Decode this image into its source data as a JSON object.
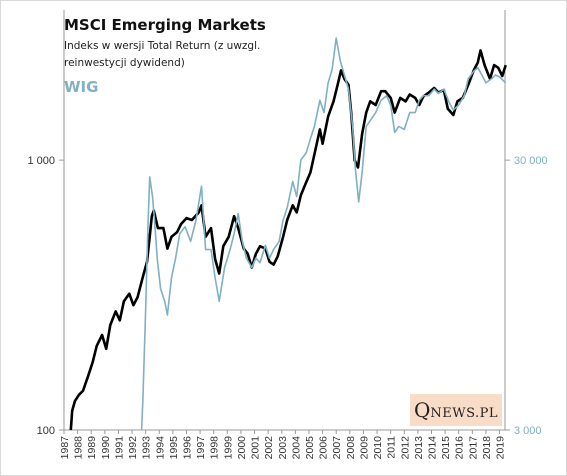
{
  "chart_data": {
    "type": "line",
    "title": "MSCI Emerging Markets",
    "subtitle": "Indeks w wersji Total Return (z uwzgl. reinwestycji dywidend)",
    "y_scale": "log",
    "x_ticks": [
      "1987",
      "1988",
      "1989",
      "1990",
      "1991",
      "1992",
      "1993",
      "1994",
      "1995",
      "1996",
      "1997",
      "1998",
      "1999",
      "2000",
      "2001",
      "2002",
      "2003",
      "2004",
      "2005",
      "2006",
      "2007",
      "2008",
      "2009",
      "2010",
      "2011",
      "2012",
      "2013",
      "2014",
      "2015",
      "2016",
      "2017",
      "2018",
      "2019"
    ],
    "ylim_left": [
      100,
      3600
    ],
    "ylim_right": [
      3000,
      108000
    ],
    "y_ticks_left": [
      "100",
      "1 000"
    ],
    "y_ticks_right": [
      "3 000",
      "30 000"
    ],
    "colors": {
      "msci": "#000000",
      "wig": "#7fb0c4"
    },
    "series": [
      {
        "name": "MSCI Emerging Markets",
        "axis": "left",
        "points": [
          [
            1988.0,
            100
          ],
          [
            1988.1,
            118
          ],
          [
            1988.3,
            128
          ],
          [
            1988.6,
            135
          ],
          [
            1988.9,
            140
          ],
          [
            1989.3,
            160
          ],
          [
            1989.6,
            178
          ],
          [
            1989.9,
            205
          ],
          [
            1990.3,
            225
          ],
          [
            1990.6,
            200
          ],
          [
            1990.9,
            245
          ],
          [
            1991.3,
            275
          ],
          [
            1991.6,
            255
          ],
          [
            1991.9,
            300
          ],
          [
            1992.3,
            320
          ],
          [
            1992.6,
            290
          ],
          [
            1992.9,
            310
          ],
          [
            1993.3,
            370
          ],
          [
            1993.6,
            420
          ],
          [
            1993.8,
            520
          ],
          [
            1993.95,
            620
          ],
          [
            1994.1,
            650
          ],
          [
            1994.4,
            560
          ],
          [
            1994.8,
            560
          ],
          [
            1995.1,
            470
          ],
          [
            1995.4,
            520
          ],
          [
            1995.8,
            540
          ],
          [
            1996.1,
            580
          ],
          [
            1996.5,
            610
          ],
          [
            1996.9,
            600
          ],
          [
            1997.4,
            640
          ],
          [
            1997.6,
            680
          ],
          [
            1997.9,
            520
          ],
          [
            1998.3,
            560
          ],
          [
            1998.6,
            430
          ],
          [
            1998.9,
            380
          ],
          [
            1999.2,
            480
          ],
          [
            1999.6,
            520
          ],
          [
            2000.0,
            620
          ],
          [
            2000.3,
            560
          ],
          [
            2000.7,
            470
          ],
          [
            2001.0,
            450
          ],
          [
            2001.3,
            400
          ],
          [
            2001.6,
            450
          ],
          [
            2001.9,
            480
          ],
          [
            2002.3,
            470
          ],
          [
            2002.6,
            420
          ],
          [
            2002.9,
            410
          ],
          [
            2003.2,
            440
          ],
          [
            2003.6,
            520
          ],
          [
            2003.9,
            600
          ],
          [
            2004.3,
            680
          ],
          [
            2004.6,
            640
          ],
          [
            2004.9,
            740
          ],
          [
            2005.3,
            830
          ],
          [
            2005.6,
            900
          ],
          [
            2005.9,
            1050
          ],
          [
            2006.3,
            1300
          ],
          [
            2006.5,
            1150
          ],
          [
            2006.9,
            1450
          ],
          [
            2007.3,
            1650
          ],
          [
            2007.6,
            1900
          ],
          [
            2007.85,
            2150
          ],
          [
            2008.1,
            2000
          ],
          [
            2008.4,
            1900
          ],
          [
            2008.6,
            1500
          ],
          [
            2008.85,
            1000
          ],
          [
            2009.1,
            940
          ],
          [
            2009.4,
            1250
          ],
          [
            2009.7,
            1500
          ],
          [
            2010.0,
            1650
          ],
          [
            2010.4,
            1600
          ],
          [
            2010.8,
            1800
          ],
          [
            2011.1,
            1800
          ],
          [
            2011.5,
            1700
          ],
          [
            2011.8,
            1500
          ],
          [
            2012.2,
            1700
          ],
          [
            2012.6,
            1650
          ],
          [
            2012.9,
            1750
          ],
          [
            2013.3,
            1700
          ],
          [
            2013.6,
            1600
          ],
          [
            2013.9,
            1720
          ],
          [
            2014.3,
            1780
          ],
          [
            2014.7,
            1850
          ],
          [
            2015.0,
            1780
          ],
          [
            2015.4,
            1820
          ],
          [
            2015.7,
            1550
          ],
          [
            2016.1,
            1470
          ],
          [
            2016.4,
            1650
          ],
          [
            2016.8,
            1700
          ],
          [
            2017.2,
            1900
          ],
          [
            2017.6,
            2150
          ],
          [
            2017.9,
            2300
          ],
          [
            2018.1,
            2550
          ],
          [
            2018.4,
            2250
          ],
          [
            2018.8,
            2000
          ],
          [
            2019.1,
            2250
          ],
          [
            2019.4,
            2200
          ],
          [
            2019.7,
            2050
          ],
          [
            2019.95,
            2250
          ]
        ]
      },
      {
        "name": "WIG",
        "axis": "right",
        "points": [
          [
            1993.2,
            3000
          ],
          [
            1993.3,
            3900
          ],
          [
            1993.5,
            8500
          ],
          [
            1993.65,
            16000
          ],
          [
            1993.8,
            26000
          ],
          [
            1994.0,
            22000
          ],
          [
            1994.15,
            18000
          ],
          [
            1994.35,
            13000
          ],
          [
            1994.6,
            10000
          ],
          [
            1994.9,
            9000
          ],
          [
            1995.1,
            8000
          ],
          [
            1995.4,
            11000
          ],
          [
            1995.7,
            13000
          ],
          [
            1996.0,
            16000
          ],
          [
            1996.4,
            17000
          ],
          [
            1996.8,
            15000
          ],
          [
            1997.2,
            18000
          ],
          [
            1997.6,
            24000
          ],
          [
            1997.9,
            14000
          ],
          [
            1998.3,
            14000
          ],
          [
            1998.6,
            11000
          ],
          [
            1998.9,
            9000
          ],
          [
            1999.3,
            12000
          ],
          [
            1999.7,
            14000
          ],
          [
            2000.0,
            16000
          ],
          [
            2000.3,
            19000
          ],
          [
            2000.6,
            15000
          ],
          [
            2000.9,
            13000
          ],
          [
            2001.3,
            12000
          ],
          [
            2001.6,
            13000
          ],
          [
            2001.9,
            12500
          ],
          [
            2002.3,
            14500
          ],
          [
            2002.6,
            13000
          ],
          [
            2002.9,
            14000
          ],
          [
            2003.3,
            15000
          ],
          [
            2003.6,
            18000
          ],
          [
            2003.9,
            20000
          ],
          [
            2004.3,
            25000
          ],
          [
            2004.6,
            22000
          ],
          [
            2004.9,
            30000
          ],
          [
            2005.3,
            32000
          ],
          [
            2005.6,
            36000
          ],
          [
            2005.9,
            40000
          ],
          [
            2006.3,
            50000
          ],
          [
            2006.6,
            45000
          ],
          [
            2006.9,
            58000
          ],
          [
            2007.2,
            65000
          ],
          [
            2007.5,
            85000
          ],
          [
            2007.8,
            70000
          ],
          [
            2008.1,
            62000
          ],
          [
            2008.4,
            55000
          ],
          [
            2008.7,
            40000
          ],
          [
            2008.9,
            28000
          ],
          [
            2009.15,
            21000
          ],
          [
            2009.4,
            27000
          ],
          [
            2009.7,
            40000
          ],
          [
            2010.0,
            42000
          ],
          [
            2010.4,
            45000
          ],
          [
            2010.8,
            50000
          ],
          [
            2011.2,
            52000
          ],
          [
            2011.5,
            48000
          ],
          [
            2011.8,
            38000
          ],
          [
            2012.1,
            40000
          ],
          [
            2012.5,
            39000
          ],
          [
            2012.9,
            45000
          ],
          [
            2013.3,
            45000
          ],
          [
            2013.6,
            50000
          ],
          [
            2013.9,
            52000
          ],
          [
            2014.3,
            52000
          ],
          [
            2014.7,
            55000
          ],
          [
            2015.0,
            53000
          ],
          [
            2015.4,
            55000
          ],
          [
            2015.8,
            49000
          ],
          [
            2016.1,
            46000
          ],
          [
            2016.5,
            48000
          ],
          [
            2016.9,
            52000
          ],
          [
            2017.2,
            60000
          ],
          [
            2017.6,
            64000
          ],
          [
            2017.9,
            66000
          ],
          [
            2018.2,
            62000
          ],
          [
            2018.5,
            58000
          ],
          [
            2018.9,
            60000
          ],
          [
            2019.2,
            62000
          ],
          [
            2019.5,
            61000
          ],
          [
            2019.95,
            58000
          ]
        ]
      }
    ],
    "legend": {
      "msci_label": "MSCI Emerging Markets",
      "wig_label": "WIG"
    },
    "watermark": {
      "big": "Q",
      "rest": "NEWS.PL"
    }
  }
}
